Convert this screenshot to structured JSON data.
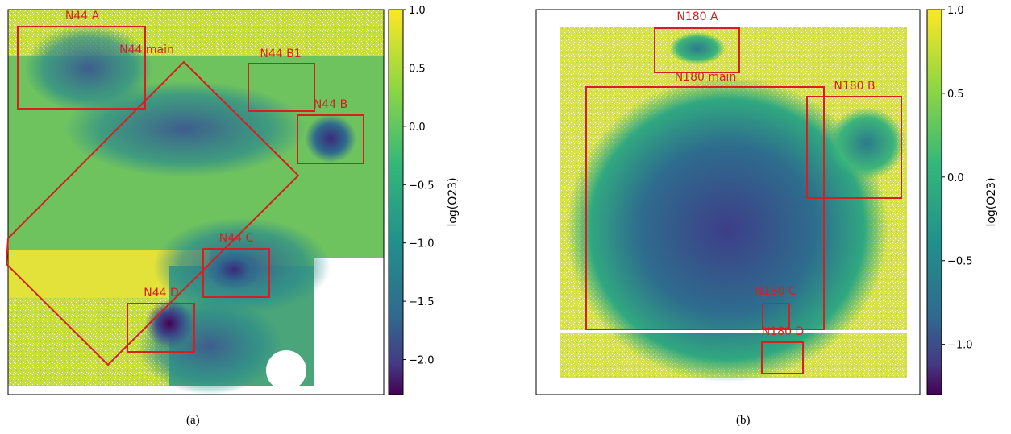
{
  "panels": [
    {
      "caption": "(a)",
      "colorbar": {
        "label": "log(O23)",
        "min": -2.3,
        "max": 1.0,
        "ticks": [
          "1.0",
          "0.5",
          "0.0",
          "−0.5",
          "−1.0",
          "−1.5",
          "−2.0"
        ],
        "tick_values": [
          1.0,
          0.5,
          0.0,
          -0.5,
          -1.0,
          -1.5,
          -2.0
        ]
      },
      "regions": [
        {
          "label": "N44 A"
        },
        {
          "label": "N44 main"
        },
        {
          "label": "N44 B1"
        },
        {
          "label": "N44 B"
        },
        {
          "label": "N44 C"
        },
        {
          "label": "N44 D"
        }
      ]
    },
    {
      "caption": "(b)",
      "colorbar": {
        "label": "log(O23)",
        "min": -1.3,
        "max": 1.0,
        "ticks": [
          "1.0",
          "0.5",
          "0.0",
          "−0.5",
          "−1.0"
        ],
        "tick_values": [
          1.0,
          0.5,
          0.0,
          -0.5,
          -1.0
        ]
      },
      "regions": [
        {
          "label": "N180 A"
        },
        {
          "label": "N180 main"
        },
        {
          "label": "N180 B"
        },
        {
          "label": "N180 C"
        },
        {
          "label": "N180 D"
        }
      ]
    }
  ],
  "colors": {
    "region_box": "#d62020",
    "viridis_top": "#fde725",
    "viridis_bottom": "#440154"
  }
}
